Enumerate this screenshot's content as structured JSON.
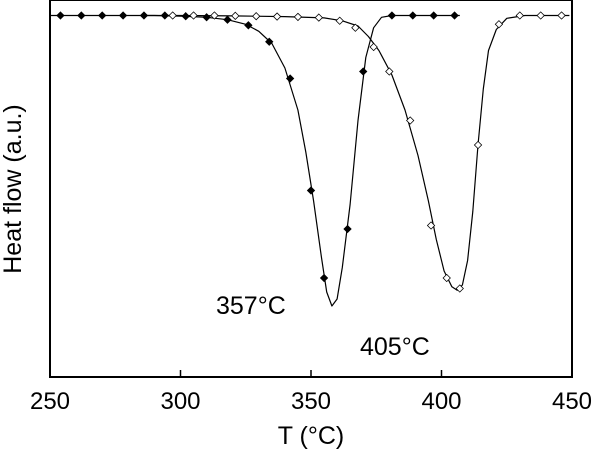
{
  "chart_data": {
    "type": "line",
    "xlabel": "T (°C)",
    "ylabel": "Heat flow (a.u.)",
    "xlim": [
      250,
      450
    ],
    "ylim": [
      0,
      1
    ],
    "xticks": [
      250,
      300,
      350,
      400,
      450
    ],
    "yticks_shown": false,
    "grid": false,
    "legend": "none",
    "annotations": [
      {
        "text": "357°C",
        "x": 330,
        "y": 0.28
      },
      {
        "text": "405°C",
        "x": 377,
        "y": 0.11
      }
    ],
    "series": [
      {
        "marker": "filled-diamond",
        "color": "#000000",
        "peak": 357,
        "curve": [
          [
            250,
            0.99
          ],
          [
            260,
            0.99
          ],
          [
            270,
            0.99
          ],
          [
            280,
            0.99
          ],
          [
            290,
            0.99
          ],
          [
            300,
            0.988
          ],
          [
            310,
            0.985
          ],
          [
            318,
            0.978
          ],
          [
            325,
            0.965
          ],
          [
            330,
            0.945
          ],
          [
            335,
            0.91
          ],
          [
            340,
            0.84
          ],
          [
            345,
            0.72
          ],
          [
            348,
            0.6
          ],
          [
            351,
            0.46
          ],
          [
            354,
            0.3
          ],
          [
            356,
            0.2
          ],
          [
            358,
            0.16
          ],
          [
            360,
            0.18
          ],
          [
            362,
            0.27
          ],
          [
            365,
            0.45
          ],
          [
            368,
            0.69
          ],
          [
            371,
            0.87
          ],
          [
            374,
            0.955
          ],
          [
            377,
            0.985
          ],
          [
            381,
            0.99
          ],
          [
            395,
            0.99
          ],
          [
            407,
            0.99
          ]
        ],
        "markers": [
          [
            254,
            0.99
          ],
          [
            262,
            0.99
          ],
          [
            270,
            0.99
          ],
          [
            278,
            0.99
          ],
          [
            286,
            0.99
          ],
          [
            294,
            0.99
          ],
          [
            302,
            0.988
          ],
          [
            310,
            0.985
          ],
          [
            318,
            0.978
          ],
          [
            326,
            0.962
          ],
          [
            334,
            0.915
          ],
          [
            342,
            0.81
          ],
          [
            350,
            0.49
          ],
          [
            355,
            0.24
          ],
          [
            364,
            0.38
          ],
          [
            370,
            0.83
          ],
          [
            381,
            0.99
          ],
          [
            389,
            0.99
          ],
          [
            397,
            0.99
          ],
          [
            405,
            0.99
          ]
        ]
      },
      {
        "marker": "open-diamond",
        "color": "#000000",
        "peak": 405,
        "curve": [
          [
            285,
            0.99
          ],
          [
            300,
            0.99
          ],
          [
            320,
            0.989
          ],
          [
            340,
            0.987
          ],
          [
            355,
            0.983
          ],
          [
            362,
            0.975
          ],
          [
            368,
            0.96
          ],
          [
            372,
            0.93
          ],
          [
            376,
            0.89
          ],
          [
            381,
            0.82
          ],
          [
            386,
            0.72
          ],
          [
            391,
            0.59
          ],
          [
            395,
            0.46
          ],
          [
            398,
            0.35
          ],
          [
            401,
            0.26
          ],
          [
            404,
            0.215
          ],
          [
            406,
            0.205
          ],
          [
            408,
            0.22
          ],
          [
            410,
            0.29
          ],
          [
            412,
            0.43
          ],
          [
            414,
            0.62
          ],
          [
            416,
            0.78
          ],
          [
            418,
            0.89
          ],
          [
            421,
            0.95
          ],
          [
            425,
            0.982
          ],
          [
            432,
            0.99
          ],
          [
            440,
            0.99
          ],
          [
            449,
            0.99
          ]
        ],
        "markers": [
          [
            297,
            0.99
          ],
          [
            305,
            0.99
          ],
          [
            313,
            0.99
          ],
          [
            321,
            0.989
          ],
          [
            329,
            0.988
          ],
          [
            337,
            0.987
          ],
          [
            345,
            0.986
          ],
          [
            353,
            0.984
          ],
          [
            361,
            0.975
          ],
          [
            367,
            0.955
          ],
          [
            374,
            0.9
          ],
          [
            380,
            0.83
          ],
          [
            388,
            0.69
          ],
          [
            396,
            0.39
          ],
          [
            402,
            0.24
          ],
          [
            407,
            0.21
          ],
          [
            414,
            0.62
          ],
          [
            422,
            0.965
          ],
          [
            430,
            0.99
          ],
          [
            438,
            0.99
          ],
          [
            446,
            0.99
          ]
        ]
      }
    ]
  }
}
